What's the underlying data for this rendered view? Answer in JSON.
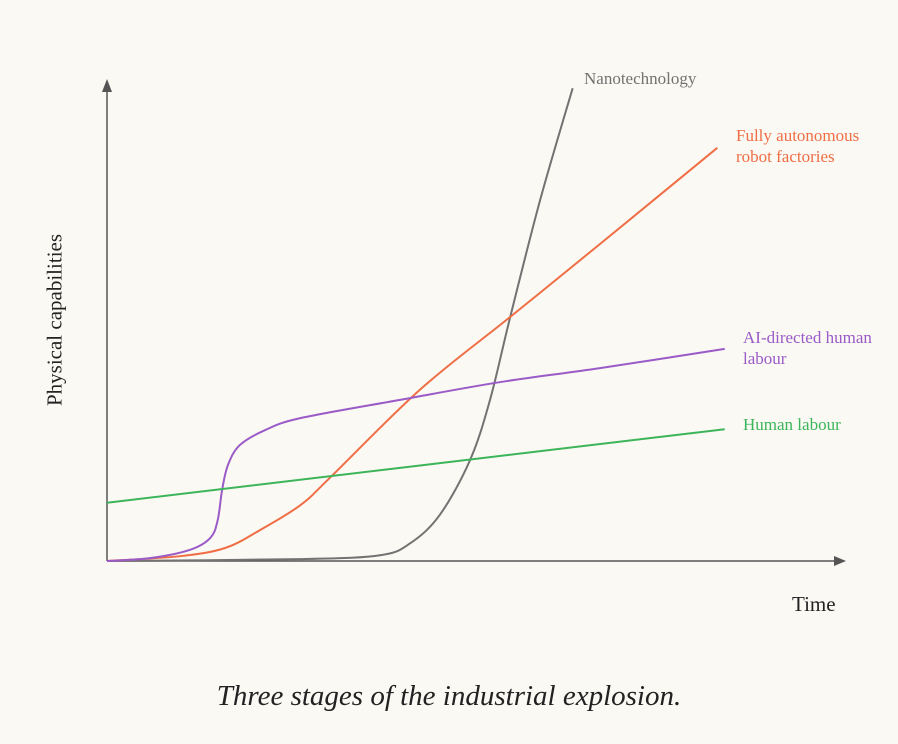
{
  "chart_data": {
    "type": "line",
    "caption": "Three stages of the industrial explosion.",
    "x_label": "Time",
    "y_label": "Physical capabilities",
    "xlim": [
      0,
      100
    ],
    "ylim": [
      0,
      100
    ],
    "series": [
      {
        "name": "Nanotechnology",
        "color": "#727272",
        "x": [
          0,
          26.2,
          37.0,
          41.1,
          45.1,
          49.2,
          51.9,
          54.6,
          58.7,
          63.1
        ],
        "values": [
          0,
          0.4,
          1.2,
          3.7,
          9.6,
          21.0,
          33.5,
          50.5,
          75.1,
          98.3
        ]
      },
      {
        "name": "Fully autonomous robot factories",
        "color": "#ef6e45",
        "x": [
          0,
          9.9,
          16.0,
          20.7,
          26.2,
          30.2,
          42.4,
          54.6,
          66.8,
          82.7
        ],
        "values": [
          0,
          1.0,
          2.7,
          6.4,
          11.6,
          17.3,
          35.6,
          50.7,
          65.9,
          85.9
        ]
      },
      {
        "name": "AI-directed human labour",
        "color": "#9a5bc8",
        "x": [
          0,
          5.8,
          11.2,
          14.0,
          15.0,
          15.6,
          16.4,
          18.0,
          21.4,
          26.2,
          39.7,
          53.3,
          66.8,
          83.7
        ],
        "values": [
          0,
          0.6,
          2.3,
          4.8,
          8.5,
          14.8,
          20.0,
          24.1,
          27.2,
          29.7,
          33.5,
          37.2,
          40.1,
          44.1
        ]
      },
      {
        "name": "Human labour",
        "color": "#3cb55a",
        "x": [
          0,
          83.7
        ],
        "values": [
          12.1,
          27.4
        ]
      }
    ]
  }
}
